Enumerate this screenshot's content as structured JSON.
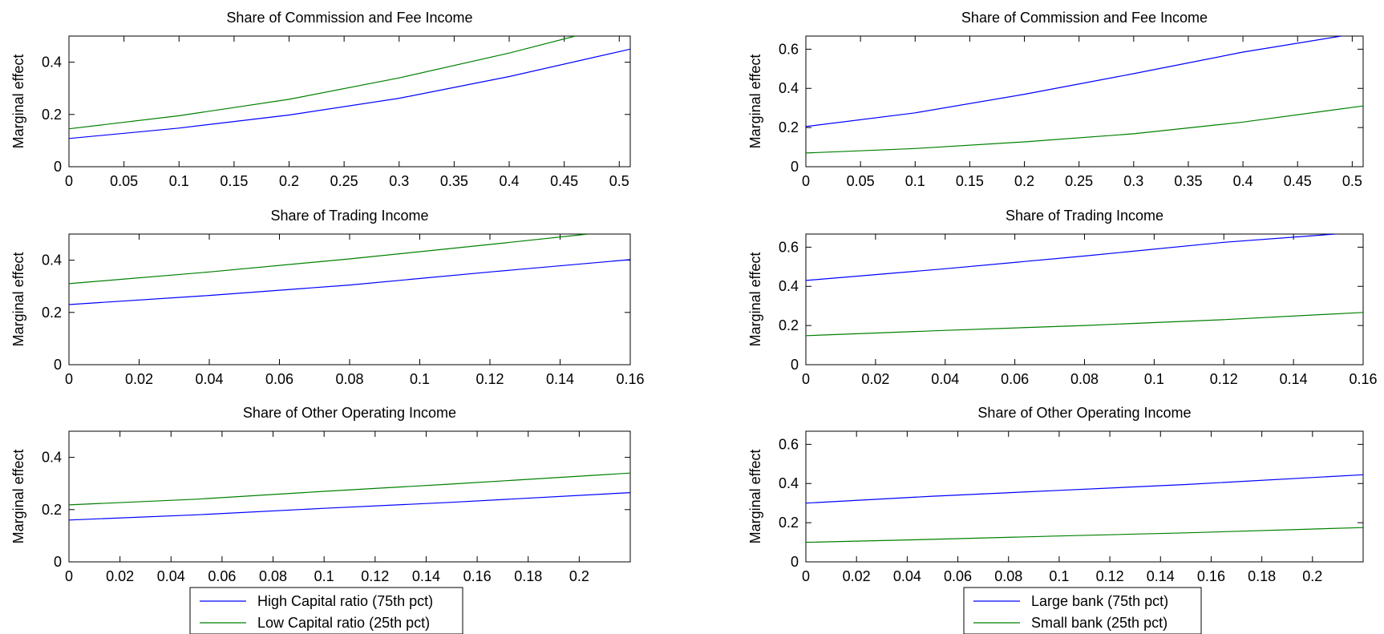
{
  "colors": {
    "series_a": "#0000ff",
    "series_b": "#008000",
    "axis": "#000000",
    "background": "#ffffff"
  },
  "legends": [
    {
      "panel_column": "left",
      "entries": [
        "High Capital ratio (75th pct)",
        "Low Capital ratio (25th pct)"
      ]
    },
    {
      "panel_column": "right",
      "entries": [
        "Large bank (75th pct)",
        "Small bank (25th pct)"
      ]
    }
  ],
  "chart_data": [
    {
      "type": "line",
      "title": "Share of Commission and Fee Income",
      "xlabel": "",
      "ylabel": "Marginal effect",
      "xlim": [
        0,
        0.51
      ],
      "ylim": [
        0,
        0.5
      ],
      "xticks": [
        "0",
        "0.05",
        "0.1",
        "0.15",
        "0.2",
        "0.25",
        "0.3",
        "0.35",
        "0.4",
        "0.45",
        "0.5"
      ],
      "yticks": [
        "0",
        "0.2",
        "0.4"
      ],
      "series": [
        {
          "name": "High Capital ratio (75th pct)",
          "color": "#0000ff",
          "x": [
            0,
            0.1,
            0.2,
            0.3,
            0.4,
            0.51
          ],
          "y": [
            0.108,
            0.148,
            0.198,
            0.262,
            0.345,
            0.45
          ]
        },
        {
          "name": "Low Capital ratio (25th pct)",
          "color": "#008000",
          "x": [
            0,
            0.1,
            0.2,
            0.3,
            0.4,
            0.46
          ],
          "y": [
            0.145,
            0.195,
            0.258,
            0.34,
            0.435,
            0.5
          ]
        }
      ]
    },
    {
      "type": "line",
      "title": "Share of Commission and Fee Income",
      "xlabel": "",
      "ylabel": "Marginal effect",
      "xlim": [
        0,
        0.51
      ],
      "ylim": [
        0,
        0.667
      ],
      "xticks": [
        "0",
        "0.05",
        "0.1",
        "0.15",
        "0.2",
        "0.25",
        "0.3",
        "0.35",
        "0.4",
        "0.45",
        "0.5"
      ],
      "yticks": [
        "0",
        "0.2",
        "0.4",
        "0.6"
      ],
      "series": [
        {
          "name": "Large bank (75th pct)",
          "color": "#0000ff",
          "x": [
            0,
            0.1,
            0.2,
            0.3,
            0.4,
            0.49
          ],
          "y": [
            0.205,
            0.275,
            0.37,
            0.475,
            0.585,
            0.667
          ]
        },
        {
          "name": "Small bank (25th pct)",
          "color": "#008000",
          "x": [
            0,
            0.1,
            0.2,
            0.3,
            0.4,
            0.51
          ],
          "y": [
            0.07,
            0.093,
            0.127,
            0.168,
            0.228,
            0.31
          ]
        }
      ]
    },
    {
      "type": "line",
      "title": "Share of Trading Income",
      "xlabel": "",
      "ylabel": "Marginal effect",
      "xlim": [
        0,
        0.16
      ],
      "ylim": [
        0,
        0.5
      ],
      "xticks": [
        "0",
        "0.02",
        "0.04",
        "0.06",
        "0.08",
        "0.1",
        "0.12",
        "0.14",
        "0.16"
      ],
      "yticks": [
        "0",
        "0.2",
        "0.4"
      ],
      "series": [
        {
          "name": "High Capital ratio (75th pct)",
          "color": "#0000ff",
          "x": [
            0,
            0.04,
            0.08,
            0.12,
            0.16
          ],
          "y": [
            0.23,
            0.265,
            0.305,
            0.355,
            0.402
          ]
        },
        {
          "name": "Low Capital ratio (25th pct)",
          "color": "#008000",
          "x": [
            0,
            0.04,
            0.08,
            0.12,
            0.148
          ],
          "y": [
            0.31,
            0.355,
            0.405,
            0.46,
            0.5
          ]
        }
      ]
    },
    {
      "type": "line",
      "title": "Share of Trading Income",
      "xlabel": "",
      "ylabel": "Marginal effect",
      "xlim": [
        0,
        0.16
      ],
      "ylim": [
        0,
        0.667
      ],
      "xticks": [
        "0",
        "0.02",
        "0.04",
        "0.06",
        "0.08",
        "0.1",
        "0.12",
        "0.14",
        "0.16"
      ],
      "yticks": [
        "0",
        "0.2",
        "0.4",
        "0.6"
      ],
      "series": [
        {
          "name": "Large bank (75th pct)",
          "color": "#0000ff",
          "x": [
            0,
            0.04,
            0.08,
            0.12,
            0.152
          ],
          "y": [
            0.43,
            0.49,
            0.555,
            0.625,
            0.667
          ]
        },
        {
          "name": "Small bank (25th pct)",
          "color": "#008000",
          "x": [
            0,
            0.04,
            0.08,
            0.12,
            0.16
          ],
          "y": [
            0.148,
            0.175,
            0.2,
            0.23,
            0.267
          ]
        }
      ]
    },
    {
      "type": "line",
      "title": "Share of Other Operating Income",
      "xlabel": "",
      "ylabel": "Marginal effect",
      "xlim": [
        0,
        0.22
      ],
      "ylim": [
        0,
        0.5
      ],
      "xticks": [
        "0",
        "0.02",
        "0.04",
        "0.06",
        "0.08",
        "0.1",
        "0.12",
        "0.14",
        "0.16",
        "0.18",
        "0.2"
      ],
      "yticks": [
        "0",
        "0.2",
        "0.4"
      ],
      "series": [
        {
          "name": "High Capital ratio (75th pct)",
          "color": "#0000ff",
          "x": [
            0,
            0.05,
            0.1,
            0.15,
            0.22
          ],
          "y": [
            0.16,
            0.18,
            0.205,
            0.228,
            0.265
          ]
        },
        {
          "name": "Low Capital ratio (25th pct)",
          "color": "#008000",
          "x": [
            0,
            0.05,
            0.1,
            0.15,
            0.22
          ],
          "y": [
            0.218,
            0.24,
            0.27,
            0.298,
            0.34
          ]
        }
      ]
    },
    {
      "type": "line",
      "title": "Share of Other Operating Income",
      "xlabel": "",
      "ylabel": "Marginal effect",
      "xlim": [
        0,
        0.22
      ],
      "ylim": [
        0,
        0.667
      ],
      "xticks": [
        "0",
        "0.02",
        "0.04",
        "0.06",
        "0.08",
        "0.1",
        "0.12",
        "0.14",
        "0.16",
        "0.18",
        "0.2"
      ],
      "yticks": [
        "0",
        "0.2",
        "0.4",
        "0.6"
      ],
      "series": [
        {
          "name": "Large bank (75th pct)",
          "color": "#0000ff",
          "x": [
            0,
            0.05,
            0.1,
            0.15,
            0.22
          ],
          "y": [
            0.3,
            0.335,
            0.365,
            0.395,
            0.445
          ]
        },
        {
          "name": "Small bank (25th pct)",
          "color": "#008000",
          "x": [
            0,
            0.05,
            0.1,
            0.15,
            0.22
          ],
          "y": [
            0.1,
            0.115,
            0.132,
            0.148,
            0.175
          ]
        }
      ]
    }
  ]
}
